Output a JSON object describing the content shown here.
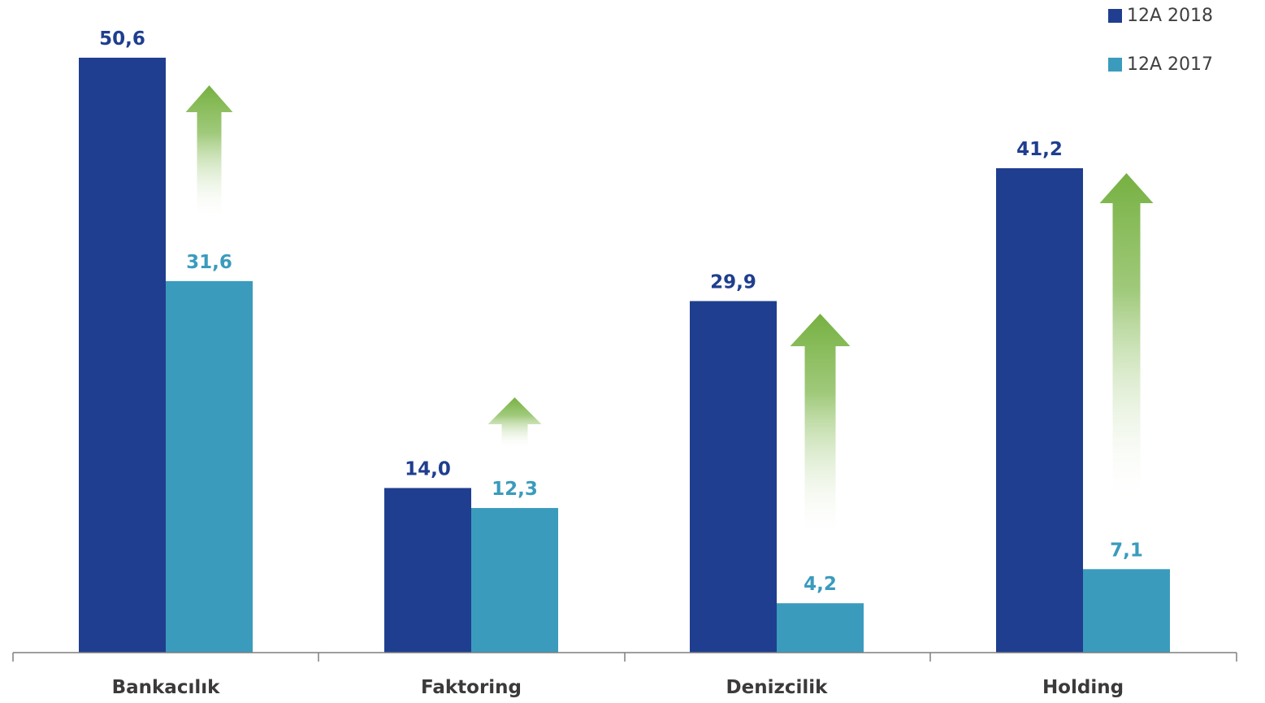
{
  "chart_data": {
    "type": "bar",
    "categories": [
      "Bankacılık",
      "Faktoring",
      "Denizcilik",
      "Holding"
    ],
    "series": [
      {
        "name": "12A 2018",
        "color": "#1f3e8f",
        "values": [
          50.6,
          14.0,
          29.9,
          41.2
        ],
        "labels": [
          "50,6",
          "14,0",
          "29,9",
          "41,2"
        ]
      },
      {
        "name": "12A 2017",
        "color": "#3a9bbd",
        "values": [
          31.6,
          12.3,
          4.2,
          7.1
        ],
        "labels": [
          "31,6",
          "12,3",
          "4,2",
          "7,1"
        ]
      }
    ],
    "ylim": [
      0,
      55
    ],
    "grid": false,
    "legend": "top-right",
    "annotations": "green upward arrows between series for each category",
    "colors": {
      "arrow": "#76b041"
    }
  }
}
